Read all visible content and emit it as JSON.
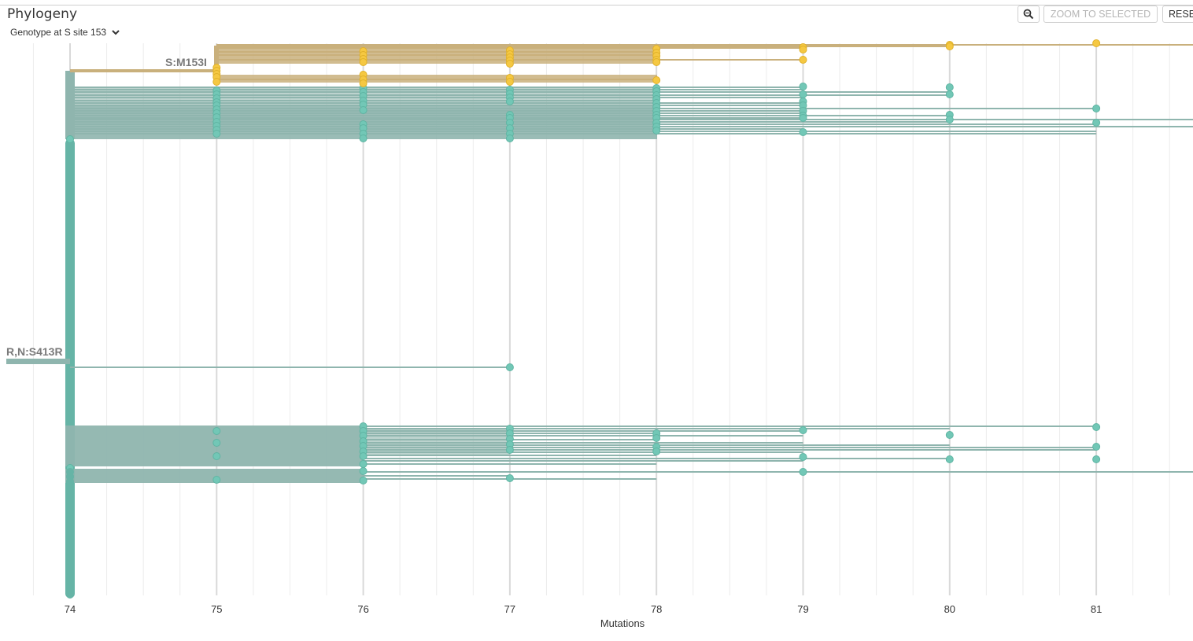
{
  "panel": {
    "title": "Phylogeny",
    "color_by_label": "Genotype at S site 153"
  },
  "toolbar": {
    "zoom_to_selected_label": "ZOOM TO SELECTED",
    "reset_label": "RESE"
  },
  "icons": {
    "zoom": "magnifier-icon",
    "dropdown": "chevron-down-icon"
  },
  "colors": {
    "clade_teal": "#72c7b6",
    "clade_teal_stroke": "#5fb5a3",
    "branch_teal": "#8fb5ae",
    "trunk_teal": "#66b4a6",
    "clade_yellow": "#f5c842",
    "branch_gold": "#c9b07c",
    "grid": "#d9d9d9"
  },
  "labels": {
    "branch_top": "S:M153I",
    "branch_mid": "R,N:S413R"
  },
  "chart_data": {
    "type": "scatter",
    "title": "",
    "xlabel": "Mutations",
    "ylabel": "",
    "x_ticks": [
      "74",
      "75",
      "76",
      "77",
      "78",
      "79",
      "80",
      "81"
    ],
    "xlim": [
      74,
      81.7
    ],
    "grid": true,
    "series": [
      {
        "genotype": "I",
        "color": "#f5c842",
        "tip_x_values": [
          75,
          75,
          75,
          75,
          75,
          76,
          76,
          76,
          76,
          76,
          76,
          76,
          77,
          77,
          77,
          77,
          77,
          77,
          77,
          78,
          78,
          78,
          78,
          78,
          78,
          79,
          79,
          79,
          80,
          80,
          81
        ]
      },
      {
        "genotype": "M",
        "color": "#72c7b6",
        "tip_x_values": [
          74,
          74,
          74,
          74,
          75,
          75,
          75,
          75,
          75,
          75,
          75,
          75,
          75,
          75,
          75,
          75,
          75,
          75,
          75,
          75,
          76,
          76,
          76,
          76,
          76,
          76,
          76,
          76,
          76,
          76,
          76,
          76,
          76,
          76,
          76,
          76,
          76,
          76,
          76,
          76,
          77,
          77,
          77,
          77,
          77,
          77,
          77,
          77,
          77,
          77,
          77,
          77,
          77,
          77,
          77,
          77,
          78,
          78,
          78,
          78,
          78,
          78,
          78,
          78,
          78,
          78,
          78,
          78,
          78,
          78,
          78,
          78,
          79,
          79,
          79,
          79,
          79,
          79,
          79,
          79,
          79,
          79,
          79,
          80,
          80,
          80,
          80,
          80,
          80,
          81,
          81,
          81,
          81,
          81
        ]
      }
    ]
  }
}
